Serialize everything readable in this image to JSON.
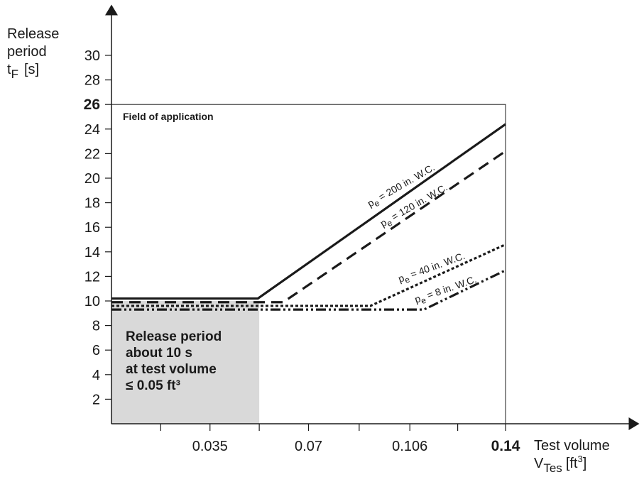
{
  "chart_data": {
    "type": "line",
    "ylabel_lines": [
      "Release",
      "period"
    ],
    "ylabel_symbol": "t",
    "ylabel_subscript": "F",
    "ylabel_unit": "[s]",
    "xlabel_line1": "Test volume",
    "xlabel_symbol": "V",
    "xlabel_subscript": "Tes",
    "xlabel_unit_open": "[ft",
    "xlabel_unit_sup": "3",
    "xlabel_unit_close": "]",
    "xlim": [
      0,
      0.14
    ],
    "ylim": [
      0,
      30
    ],
    "x_ticks": [
      {
        "value": 0.035,
        "label": "0.035",
        "bold": false
      },
      {
        "value": 0.07,
        "label": "0.07",
        "bold": false
      },
      {
        "value": 0.106,
        "label": "0.106",
        "bold": false
      },
      {
        "value": 0.14,
        "label": "0.14",
        "bold": true
      }
    ],
    "y_ticks": [
      {
        "value": 2,
        "label": "2",
        "bold": false
      },
      {
        "value": 4,
        "label": "4",
        "bold": false
      },
      {
        "value": 6,
        "label": "6",
        "bold": false
      },
      {
        "value": 8,
        "label": "8",
        "bold": false
      },
      {
        "value": 10,
        "label": "10",
        "bold": false
      },
      {
        "value": 12,
        "label": "12",
        "bold": false
      },
      {
        "value": 14,
        "label": "14",
        "bold": false
      },
      {
        "value": 16,
        "label": "16",
        "bold": false
      },
      {
        "value": 18,
        "label": "18",
        "bold": false
      },
      {
        "value": 20,
        "label": "20",
        "bold": false
      },
      {
        "value": 22,
        "label": "22",
        "bold": false
      },
      {
        "value": 24,
        "label": "24",
        "bold": false
      },
      {
        "value": 26,
        "label": "26",
        "bold": true
      },
      {
        "value": 28,
        "label": "28",
        "bold": false
      },
      {
        "value": 30,
        "label": "30",
        "bold": false
      }
    ],
    "field_of_application": {
      "label": "Field of application",
      "x_max": 0.14,
      "y_max": 26
    },
    "shaded_region": {
      "x_max": 0.0525,
      "y_max": 10,
      "color": "#d9d9d9",
      "text_lines": [
        "Release period",
        "about 10 s",
        "at test volume",
        "≤ 0.05 ft³"
      ]
    },
    "series": [
      {
        "name": "p",
        "name_sub": "e",
        "name_rest": " = 200 in. W.C.",
        "style": "solid",
        "points": [
          [
            0,
            10.2
          ],
          [
            0.052,
            10.2
          ],
          [
            0.14,
            24.4
          ]
        ],
        "label_angle": -30
      },
      {
        "name": "p",
        "name_sub": "e",
        "name_rest": " = 120 in. W.C.",
        "style": "dash",
        "points": [
          [
            0,
            9.9
          ],
          [
            0.061,
            9.9
          ],
          [
            0.14,
            22.2
          ]
        ],
        "label_angle": -30
      },
      {
        "name": "p",
        "name_sub": "e",
        "name_rest": " = 40 in. W.C.",
        "style": "dot",
        "points": [
          [
            0,
            9.6
          ],
          [
            0.092,
            9.6
          ],
          [
            0.14,
            14.6
          ]
        ],
        "label_angle": -20
      },
      {
        "name": "p",
        "name_sub": "e",
        "name_rest": " = 8 in. W.C.",
        "style": "dashdot",
        "points": [
          [
            0,
            9.3
          ],
          [
            0.111,
            9.3
          ],
          [
            0.14,
            12.5
          ]
        ],
        "label_angle": -19
      }
    ],
    "grid": false,
    "colors": {
      "line": "#1a1a1a",
      "shade": "#d9d9d9"
    }
  }
}
